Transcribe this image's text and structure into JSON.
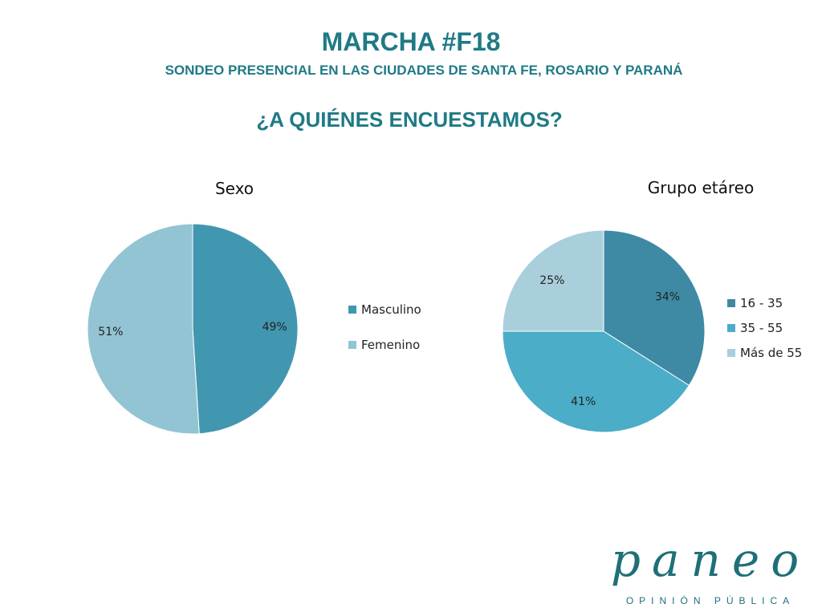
{
  "header": {
    "title": "MARCHA #F18",
    "subtitle": "SONDEO PRESENCIAL EN LAS CIUDADES DE SANTA FE, ROSARIO Y PARANÁ",
    "question": "¿A QUIÉNES ENCUESTAMOS?"
  },
  "logo": {
    "word": "paneo",
    "tagline": "OPINIÓN PÚBLICA"
  },
  "chart_data": [
    {
      "type": "pie",
      "title": "Sexo",
      "categories": [
        "Masculino",
        "Femenino"
      ],
      "values": [
        49,
        51
      ],
      "labels": [
        "49%",
        "51%"
      ],
      "colors": [
        "#4297b0",
        "#93c4d4"
      ],
      "legend": "right",
      "start_angle_deg": 0,
      "direction": "clockwise"
    },
    {
      "type": "pie",
      "title": "Grupo etáreo",
      "categories": [
        "16 - 35",
        "35 - 55",
        "Más de 55"
      ],
      "values": [
        34,
        41,
        25
      ],
      "labels": [
        "34%",
        "41%",
        "25%"
      ],
      "colors": [
        "#3e8aa4",
        "#4badc8",
        "#a9cfdd"
      ],
      "legend": "right",
      "start_angle_deg": 0,
      "direction": "clockwise"
    }
  ]
}
